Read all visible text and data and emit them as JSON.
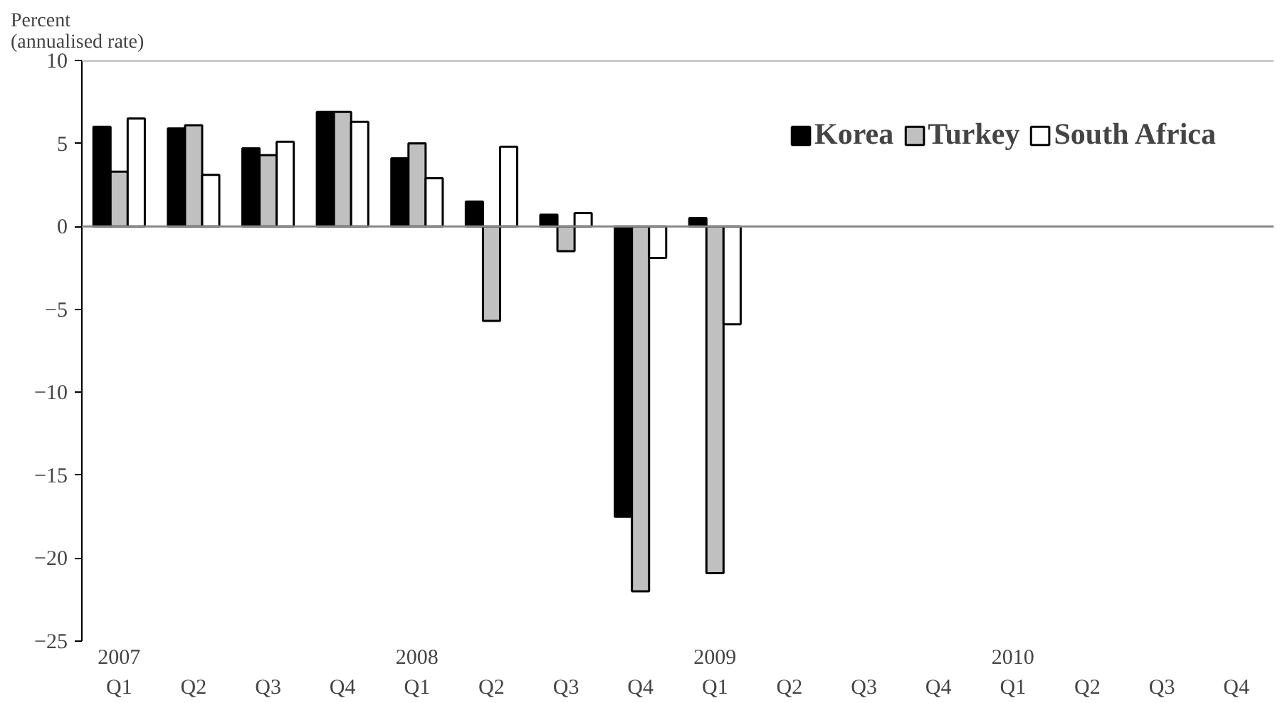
{
  "chart_data": {
    "type": "bar",
    "ylabel": "Percent\n(annualised rate)",
    "categories": [
      "2007\nQ1",
      "Q2",
      "Q3",
      "Q4",
      "2008\nQ1",
      "Q2",
      "Q3",
      "Q4",
      "2009\nQ1",
      "Q2",
      "Q3",
      "Q4",
      "2010\nQ1",
      "Q2",
      "Q3",
      "Q4"
    ],
    "series": [
      {
        "name": "Korea",
        "color": "#000000",
        "values": [
          6.0,
          5.9,
          4.7,
          6.9,
          4.1,
          1.5,
          0.7,
          -17.5,
          0.5,
          null,
          null,
          null,
          null,
          null,
          null,
          null
        ]
      },
      {
        "name": "Turkey",
        "color": "#c0c0c0",
        "values": [
          3.3,
          6.1,
          4.3,
          6.9,
          5.0,
          -5.7,
          -1.5,
          -22.0,
          -20.9,
          null,
          null,
          null,
          null,
          null,
          null,
          null
        ]
      },
      {
        "name": "South Africa",
        "color": "#ffffff",
        "values": [
          6.5,
          3.1,
          5.1,
          6.3,
          2.9,
          4.8,
          0.8,
          -1.9,
          -5.9,
          null,
          null,
          null,
          null,
          null,
          null,
          null
        ]
      }
    ],
    "ylim": [
      -25,
      10
    ],
    "yticks": [
      -25,
      -20,
      -15,
      -10,
      -5,
      0,
      5,
      10
    ],
    "legend": "top right"
  }
}
